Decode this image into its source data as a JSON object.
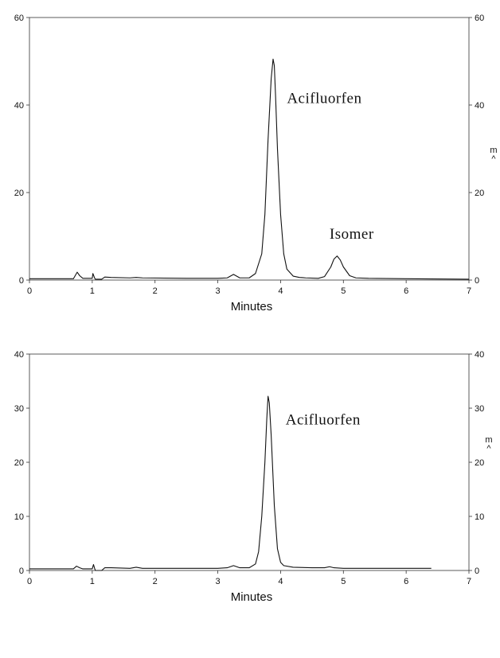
{
  "chart_data": [
    {
      "type": "line",
      "xlabel": "Minutes",
      "right_unit_label": [
        "m",
        "^"
      ],
      "xlim": [
        0,
        7
      ],
      "ylim": [
        0,
        60
      ],
      "x_ticks": [
        "0",
        "1",
        "2",
        "3",
        "4",
        "5",
        "6",
        "7"
      ],
      "y_ticks": [
        "0",
        "20",
        "40",
        "60"
      ],
      "annotations": [
        {
          "text": "Acifluorfen",
          "x": 4.1,
          "y": 40.5
        },
        {
          "text": "Isomer",
          "x": 4.78,
          "y": 9.5
        }
      ],
      "series": [
        {
          "x": [
            0,
            0.7,
            0.76,
            0.8,
            0.85,
            1.0,
            1.01,
            1.04,
            1.05,
            1.15,
            1.2,
            1.3,
            1.6,
            1.7,
            1.8,
            2.5,
            3.0,
            3.15,
            3.25,
            3.35,
            3.5,
            3.6,
            3.7,
            3.75,
            3.8,
            3.85,
            3.88,
            3.9,
            3.92,
            3.95,
            4.0,
            4.05,
            4.1,
            4.2,
            4.3,
            4.4,
            4.6,
            4.7,
            4.8,
            4.85,
            4.9,
            4.95,
            5.0,
            5.1,
            5.2,
            5.4,
            6.0,
            7.0
          ],
          "y": [
            0.3,
            0.3,
            1.8,
            1.0,
            0.4,
            0.4,
            1.5,
            0.4,
            0.2,
            0.2,
            0.7,
            0.6,
            0.5,
            0.6,
            0.5,
            0.4,
            0.4,
            0.5,
            1.3,
            0.5,
            0.5,
            1.5,
            6.0,
            15.0,
            32.0,
            46.0,
            50.5,
            49.0,
            42.0,
            30.0,
            15.0,
            6.0,
            2.5,
            0.9,
            0.6,
            0.5,
            0.4,
            0.8,
            3.0,
            4.8,
            5.5,
            4.6,
            3.0,
            1.0,
            0.5,
            0.4,
            0.3,
            0.2
          ]
        }
      ]
    },
    {
      "type": "line",
      "xlabel": "Minutes",
      "right_unit_label": [
        "m",
        "^"
      ],
      "xlim": [
        0,
        7
      ],
      "ylim": [
        0,
        40
      ],
      "x_ticks": [
        "0",
        "1",
        "2",
        "3",
        "4",
        "5",
        "6",
        "7"
      ],
      "y_ticks": [
        "0",
        "10",
        "20",
        "30",
        "40"
      ],
      "annotations": [
        {
          "text": "Acifluorfen",
          "x": 4.08,
          "y": 27.0
        }
      ],
      "series": [
        {
          "x": [
            0,
            0.7,
            0.75,
            0.8,
            0.85,
            1.0,
            1.02,
            1.04,
            1.05,
            1.15,
            1.2,
            1.3,
            1.6,
            1.7,
            1.8,
            2.5,
            3.0,
            3.15,
            3.25,
            3.35,
            3.5,
            3.6,
            3.65,
            3.7,
            3.75,
            3.78,
            3.8,
            3.82,
            3.85,
            3.9,
            3.95,
            4.0,
            4.05,
            4.2,
            4.5,
            4.7,
            4.78,
            4.85,
            5.0,
            6.0,
            6.4
          ],
          "y": [
            0.3,
            0.3,
            0.8,
            0.5,
            0.3,
            0.3,
            1.1,
            0.3,
            0.0,
            0.0,
            0.5,
            0.5,
            0.4,
            0.6,
            0.4,
            0.4,
            0.4,
            0.5,
            0.9,
            0.5,
            0.5,
            1.2,
            3.5,
            10.0,
            20.0,
            28.0,
            32.2,
            31.0,
            25.0,
            12.0,
            4.0,
            1.5,
            0.9,
            0.6,
            0.5,
            0.5,
            0.7,
            0.5,
            0.4,
            0.4,
            0.4
          ]
        }
      ]
    }
  ]
}
